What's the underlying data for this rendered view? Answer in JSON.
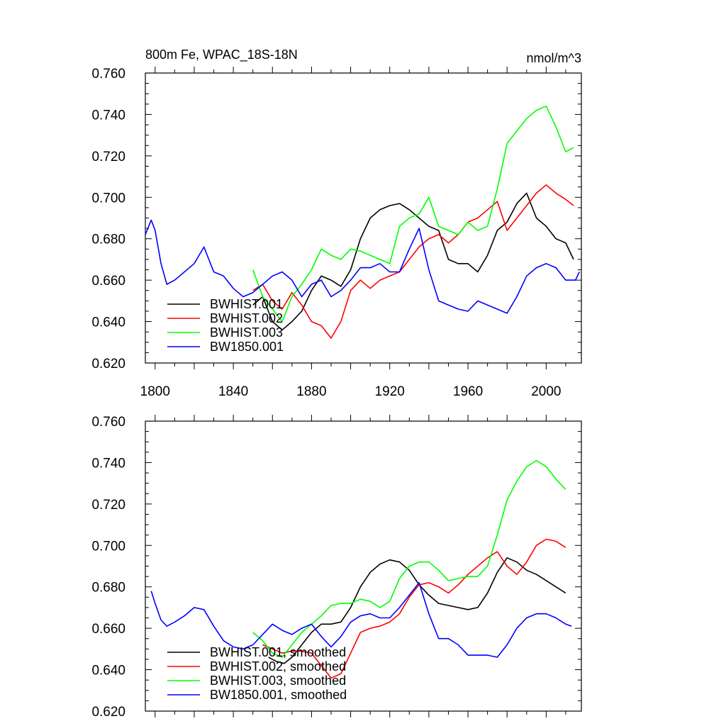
{
  "chart_data": [
    {
      "type": "line",
      "title": "800m Fe, WPAC_18S-18N",
      "units": "nmol/m^3",
      "xlim": [
        1795,
        2018
      ],
      "ylim": [
        0.62,
        0.76
      ],
      "xticks": [
        "1800",
        "1840",
        "1880",
        "1920",
        "1960",
        "2000"
      ],
      "yticks": [
        "0.620",
        "0.640",
        "0.660",
        "0.680",
        "0.700",
        "0.720",
        "0.740",
        "0.760"
      ],
      "grid": false,
      "legend_position": "bottom-left",
      "series": [
        {
          "name": "BWHIST.001",
          "color": "#000000",
          "x": [
            1850,
            1855,
            1860,
            1865,
            1870,
            1875,
            1880,
            1885,
            1890,
            1895,
            1900,
            1905,
            1910,
            1915,
            1920,
            1925,
            1930,
            1935,
            1940,
            1945,
            1950,
            1955,
            1960,
            1965,
            1970,
            1975,
            1980,
            1985,
            1990,
            1995,
            2000,
            2005,
            2010,
            2014
          ],
          "y": [
            0.648,
            0.652,
            0.64,
            0.636,
            0.64,
            0.645,
            0.655,
            0.662,
            0.66,
            0.657,
            0.665,
            0.68,
            0.69,
            0.694,
            0.696,
            0.697,
            0.694,
            0.69,
            0.686,
            0.684,
            0.67,
            0.668,
            0.668,
            0.664,
            0.672,
            0.684,
            0.688,
            0.697,
            0.702,
            0.69,
            0.686,
            0.68,
            0.678,
            0.67
          ]
        },
        {
          "name": "BWHIST.002",
          "color": "#ff0000",
          "x": [
            1850,
            1855,
            1860,
            1865,
            1870,
            1875,
            1880,
            1885,
            1890,
            1895,
            1900,
            1905,
            1910,
            1915,
            1920,
            1925,
            1930,
            1935,
            1940,
            1945,
            1950,
            1955,
            1960,
            1965,
            1970,
            1975,
            1980,
            1985,
            1990,
            1995,
            2000,
            2005,
            2010,
            2014
          ],
          "y": [
            0.655,
            0.658,
            0.65,
            0.646,
            0.654,
            0.648,
            0.64,
            0.638,
            0.632,
            0.64,
            0.655,
            0.66,
            0.656,
            0.66,
            0.662,
            0.664,
            0.67,
            0.676,
            0.68,
            0.682,
            0.678,
            0.682,
            0.688,
            0.69,
            0.694,
            0.698,
            0.684,
            0.69,
            0.696,
            0.702,
            0.706,
            0.702,
            0.699,
            0.696
          ]
        },
        {
          "name": "BWHIST.003",
          "color": "#00ff00",
          "x": [
            1850,
            1855,
            1860,
            1865,
            1870,
            1875,
            1880,
            1885,
            1890,
            1895,
            1900,
            1905,
            1910,
            1915,
            1920,
            1925,
            1930,
            1935,
            1940,
            1945,
            1950,
            1955,
            1960,
            1965,
            1970,
            1975,
            1980,
            1985,
            1990,
            1995,
            2000,
            2005,
            2010,
            2014
          ],
          "y": [
            0.665,
            0.652,
            0.646,
            0.64,
            0.652,
            0.658,
            0.665,
            0.675,
            0.672,
            0.67,
            0.675,
            0.674,
            0.672,
            0.67,
            0.668,
            0.686,
            0.69,
            0.692,
            0.7,
            0.686,
            0.684,
            0.682,
            0.688,
            0.684,
            0.686,
            0.704,
            0.726,
            0.732,
            0.738,
            0.742,
            0.744,
            0.734,
            0.722,
            0.724
          ]
        },
        {
          "name": "BW1850.001",
          "color": "#0000ff",
          "x": [
            1795,
            1798,
            1800,
            1803,
            1806,
            1810,
            1815,
            1820,
            1825,
            1830,
            1835,
            1840,
            1845,
            1850,
            1855,
            1860,
            1865,
            1870,
            1875,
            1880,
            1885,
            1890,
            1895,
            1900,
            1905,
            1910,
            1915,
            1920,
            1925,
            1930,
            1935,
            1940,
            1945,
            1950,
            1955,
            1960,
            1965,
            1970,
            1975,
            1980,
            1985,
            1990,
            1995,
            2000,
            2005,
            2010,
            2015,
            2017
          ],
          "y": [
            0.682,
            0.689,
            0.684,
            0.668,
            0.658,
            0.66,
            0.664,
            0.668,
            0.676,
            0.664,
            0.662,
            0.656,
            0.652,
            0.654,
            0.658,
            0.662,
            0.664,
            0.66,
            0.652,
            0.658,
            0.66,
            0.652,
            0.655,
            0.66,
            0.666,
            0.666,
            0.668,
            0.664,
            0.664,
            0.675,
            0.685,
            0.665,
            0.65,
            0.648,
            0.646,
            0.645,
            0.65,
            0.648,
            0.646,
            0.644,
            0.652,
            0.662,
            0.666,
            0.668,
            0.666,
            0.66,
            0.66,
            0.664
          ]
        }
      ]
    },
    {
      "type": "line",
      "xlim": [
        1795,
        2018
      ],
      "ylim": [
        0.62,
        0.76
      ],
      "yticks": [
        "0.620",
        "0.640",
        "0.660",
        "0.680",
        "0.700",
        "0.720",
        "0.740",
        "0.760"
      ],
      "grid": false,
      "legend_position": "bottom-left",
      "series": [
        {
          "name": "BWHIST.001, smoothed",
          "color": "#000000",
          "x": [
            1858,
            1862,
            1866,
            1870,
            1875,
            1880,
            1885,
            1890,
            1895,
            1900,
            1905,
            1910,
            1915,
            1920,
            1925,
            1930,
            1935,
            1940,
            1945,
            1950,
            1955,
            1960,
            1965,
            1970,
            1975,
            1980,
            1985,
            1990,
            1995,
            2000,
            2005,
            2010
          ],
          "y": [
            0.646,
            0.644,
            0.643,
            0.646,
            0.652,
            0.658,
            0.662,
            0.662,
            0.663,
            0.67,
            0.68,
            0.687,
            0.691,
            0.693,
            0.692,
            0.688,
            0.681,
            0.676,
            0.672,
            0.671,
            0.67,
            0.669,
            0.67,
            0.677,
            0.687,
            0.694,
            0.692,
            0.688,
            0.686,
            0.683,
            0.68,
            0.677
          ]
        },
        {
          "name": "BWHIST.002, smoothed",
          "color": "#ff0000",
          "x": [
            1855,
            1860,
            1865,
            1870,
            1875,
            1880,
            1885,
            1890,
            1895,
            1900,
            1905,
            1910,
            1915,
            1920,
            1925,
            1930,
            1935,
            1940,
            1945,
            1950,
            1955,
            1960,
            1965,
            1970,
            1975,
            1980,
            1985,
            1990,
            1995,
            2000,
            2005,
            2010
          ],
          "y": [
            0.652,
            0.65,
            0.648,
            0.649,
            0.649,
            0.648,
            0.642,
            0.636,
            0.638,
            0.648,
            0.658,
            0.66,
            0.661,
            0.663,
            0.667,
            0.675,
            0.681,
            0.682,
            0.68,
            0.677,
            0.681,
            0.686,
            0.69,
            0.694,
            0.697,
            0.69,
            0.686,
            0.692,
            0.7,
            0.703,
            0.702,
            0.699
          ]
        },
        {
          "name": "BWHIST.003, smoothed",
          "color": "#00ff00",
          "x": [
            1850,
            1855,
            1860,
            1865,
            1870,
            1875,
            1880,
            1885,
            1890,
            1895,
            1900,
            1905,
            1910,
            1915,
            1920,
            1925,
            1930,
            1935,
            1940,
            1945,
            1950,
            1955,
            1960,
            1965,
            1970,
            1975,
            1980,
            1985,
            1990,
            1995,
            2000,
            2005,
            2010
          ],
          "y": [
            0.658,
            0.654,
            0.648,
            0.646,
            0.652,
            0.658,
            0.662,
            0.666,
            0.671,
            0.672,
            0.672,
            0.674,
            0.673,
            0.67,
            0.673,
            0.684,
            0.69,
            0.692,
            0.692,
            0.688,
            0.683,
            0.684,
            0.685,
            0.685,
            0.69,
            0.705,
            0.722,
            0.731,
            0.738,
            0.741,
            0.738,
            0.732,
            0.727
          ]
        },
        {
          "name": "BW1850.001, smoothed",
          "color": "#0000ff",
          "x": [
            1798,
            1800,
            1803,
            1806,
            1810,
            1815,
            1820,
            1825,
            1830,
            1835,
            1840,
            1845,
            1850,
            1855,
            1860,
            1865,
            1870,
            1875,
            1880,
            1885,
            1890,
            1895,
            1900,
            1905,
            1910,
            1915,
            1920,
            1925,
            1930,
            1935,
            1940,
            1945,
            1950,
            1955,
            1960,
            1965,
            1970,
            1975,
            1980,
            1985,
            1990,
            1995,
            2000,
            2005,
            2010,
            2013
          ],
          "y": [
            0.678,
            0.672,
            0.664,
            0.661,
            0.663,
            0.666,
            0.67,
            0.669,
            0.661,
            0.654,
            0.651,
            0.65,
            0.652,
            0.657,
            0.662,
            0.659,
            0.657,
            0.66,
            0.662,
            0.656,
            0.651,
            0.656,
            0.663,
            0.666,
            0.667,
            0.665,
            0.665,
            0.67,
            0.676,
            0.682,
            0.667,
            0.655,
            0.655,
            0.652,
            0.647,
            0.647,
            0.647,
            0.646,
            0.652,
            0.66,
            0.665,
            0.667,
            0.667,
            0.665,
            0.662,
            0.661
          ]
        }
      ]
    }
  ]
}
